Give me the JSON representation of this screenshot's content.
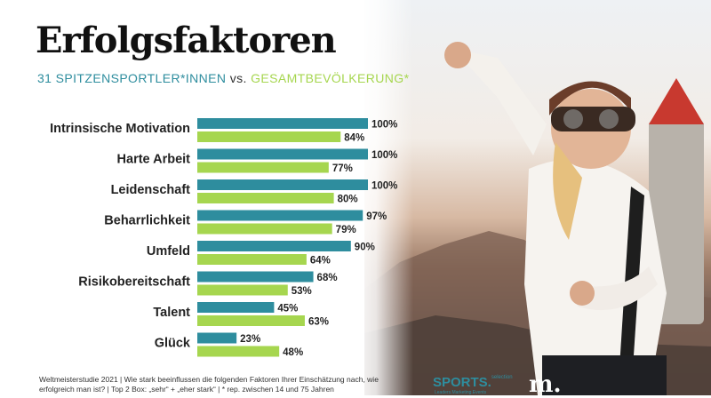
{
  "title": "Erfolgsfaktoren",
  "subtitle": {
    "group1": "31 SPITZENSPORTLER*INNEN",
    "vs": "vs.",
    "group2": "GESAMTBEVÖLKERUNG*"
  },
  "colors": {
    "group1": "#2e8d9e",
    "group2": "#a6d64f"
  },
  "chart_data": {
    "type": "bar",
    "orientation": "horizontal",
    "categories": [
      "Intrinsische Motivation",
      "Harte Arbeit",
      "Leidenschaft",
      "Beharrlichkeit",
      "Umfeld",
      "Risikobereitschaft",
      "Talent",
      "Glück"
    ],
    "series": [
      {
        "name": "31 SPITZENSPORTLER*INNEN",
        "values": [
          100,
          100,
          100,
          97,
          90,
          68,
          45,
          23
        ],
        "color": "#2e8d9e"
      },
      {
        "name": "GESAMTBEVÖLKERUNG*",
        "values": [
          84,
          77,
          80,
          79,
          64,
          53,
          63,
          48
        ],
        "color": "#a6d64f"
      }
    ],
    "value_suffix": "%",
    "xlim": [
      0,
      100
    ],
    "grid": false
  },
  "footer": "Weltmeisterstudie 2021 | Wie stark beeinflussen die folgenden Faktoren Ihrer Einschätzung nach, wie erfolgreich man ist? | Top 2 Box: „sehr“ + „eher stark“ | * rep. zwischen 14 und 75 Jahren",
  "logos": {
    "sports_name": "SPORTS.",
    "sports_suffix": "selection",
    "sports_tagline": "Leaders.Marketing.Events",
    "m_mark": "m."
  }
}
